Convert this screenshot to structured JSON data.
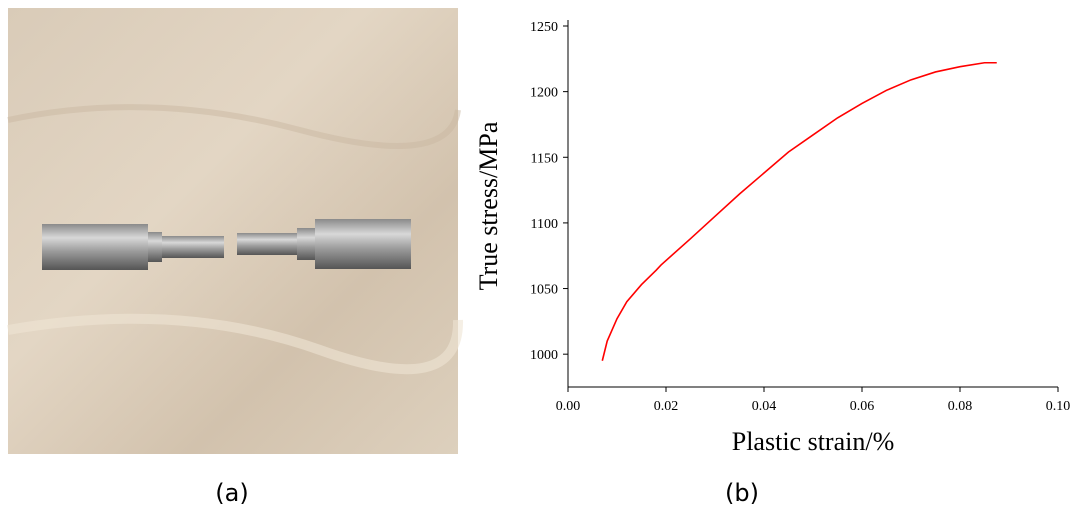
{
  "chart_data": {
    "type": "line",
    "xlabel": "Plastic strain/%",
    "ylabel": "True stress/MPa",
    "x": [
      0.007,
      0.008,
      0.01,
      0.012,
      0.015,
      0.018,
      0.019,
      0.025,
      0.03,
      0.035,
      0.04,
      0.045,
      0.05,
      0.055,
      0.06,
      0.065,
      0.07,
      0.075,
      0.08,
      0.085,
      0.0875
    ],
    "series": [
      {
        "color": "#ff0000",
        "values": [
          995,
          1010,
          1027,
          1040,
          1053,
          1064,
          1068,
          1088,
          1105,
          1122,
          1138,
          1154,
          1167,
          1180,
          1191,
          1201,
          1209,
          1215,
          1219,
          1222,
          1222
        ]
      }
    ],
    "xlim": [
      0,
      0.1
    ],
    "xticks": [
      {
        "value": 0,
        "label": "0.00"
      },
      0.02,
      0.04,
      0.06,
      0.08,
      {
        "value": 0.1,
        "label": "0.10"
      }
    ],
    "ylim": [
      975,
      1250
    ],
    "yticks": [
      1000,
      1050,
      1100,
      1150,
      1200,
      1250
    ]
  },
  "captions": [
    "(a)",
    "(b)"
  ]
}
